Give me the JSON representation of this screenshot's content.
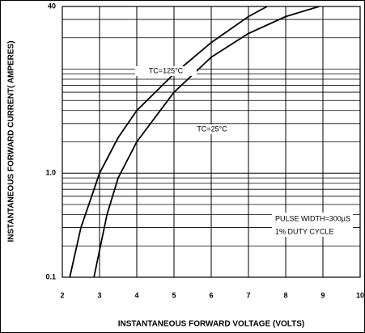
{
  "chart_data": {
    "type": "line",
    "xlabel": "INSTANTANEOUS FORWARD VOLTAGE (VOLTS)",
    "ylabel": "INSTANTANEOUS FORWARD CURRENT( AMPERES)",
    "xlim": [
      2,
      10
    ],
    "xticks": [
      2,
      3,
      4,
      5,
      6,
      7,
      8,
      9,
      10
    ],
    "ylim": [
      0.1,
      40
    ],
    "yticks": [
      0.1,
      {
        "value": 1,
        "label": "1.0"
      },
      40
    ],
    "y_minor_ticks": [
      0.2,
      0.3,
      0.4,
      0.5,
      0.6,
      0.7,
      0.8,
      0.9,
      2,
      3,
      4,
      5,
      6,
      7,
      8,
      9,
      10,
      20,
      30
    ],
    "log_y": true,
    "grid": true,
    "series": [
      {
        "name": "TC=125°C",
        "color": "#000000",
        "x": [
          2.2,
          2.5,
          3,
          3.5,
          4,
          5,
          6,
          7,
          7.5
        ],
        "values": [
          0.1,
          0.3,
          1,
          2.2,
          4,
          9,
          18,
          32,
          40
        ]
      },
      {
        "name": "TC=25°C",
        "color": "#000000",
        "x": [
          2.85,
          3.2,
          3.5,
          4,
          5,
          6,
          7,
          8,
          8.9
        ],
        "values": [
          0.1,
          0.4,
          0.9,
          2,
          6,
          13,
          22,
          32,
          40
        ]
      }
    ],
    "annotations": [
      "PULSE WIDTH=300µS",
      "1% DUTY CYCLE"
    ]
  }
}
